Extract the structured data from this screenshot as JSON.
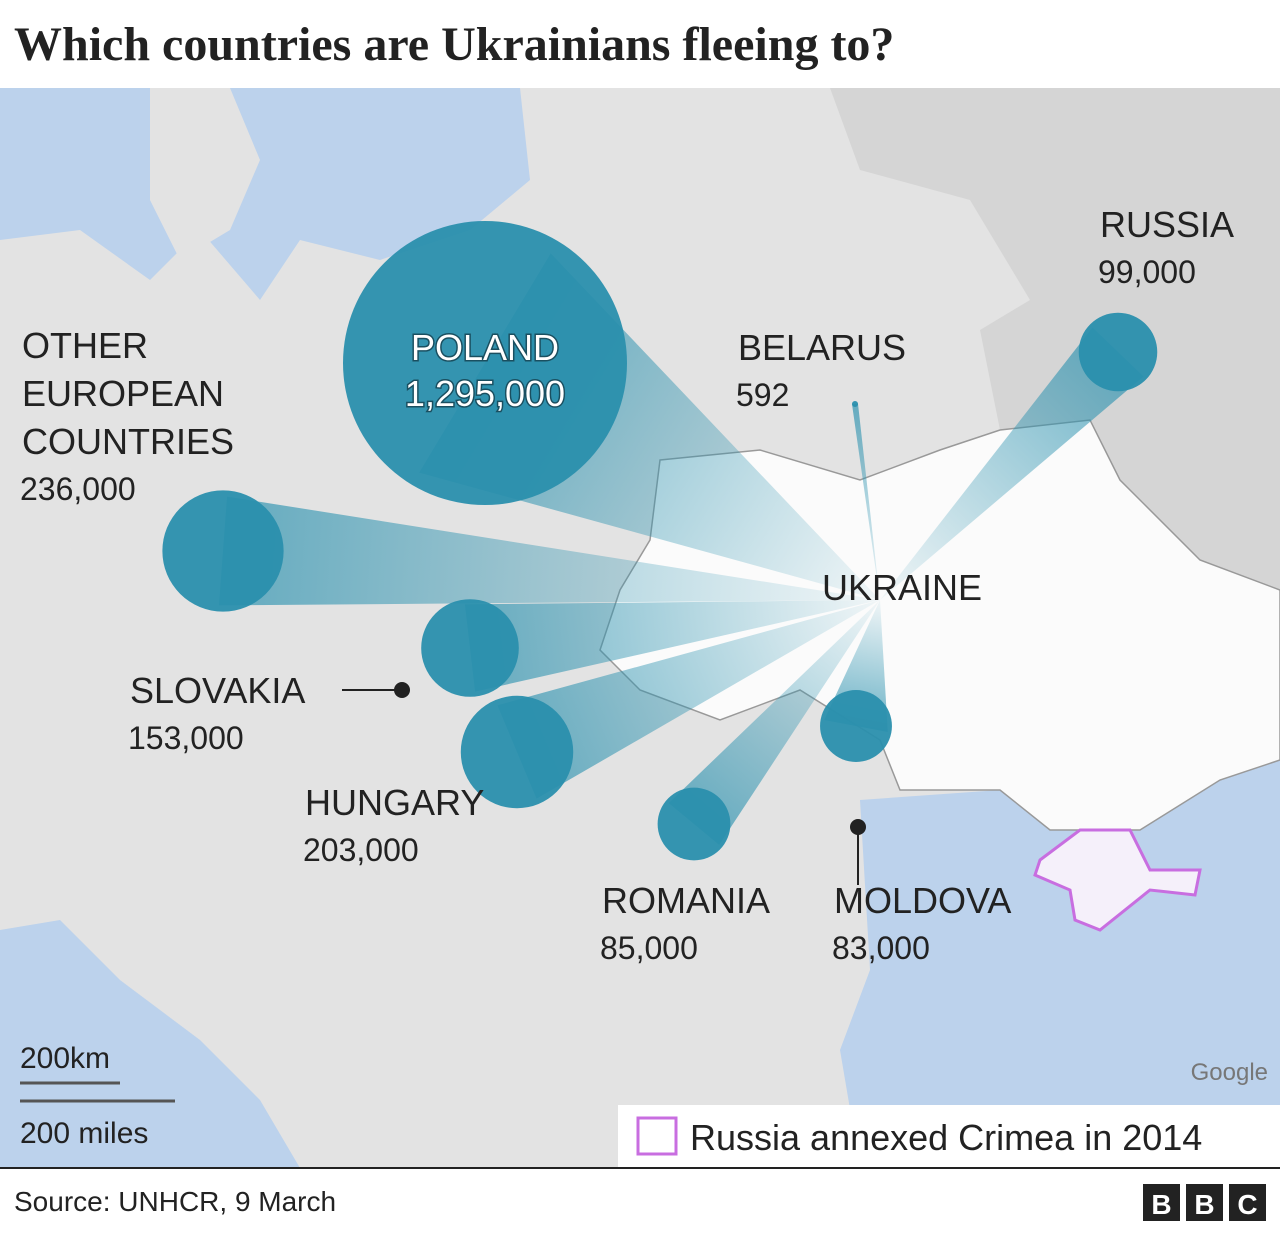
{
  "map": {
    "title": "Which countries are Ukrainians fleeing to?",
    "origin": "UKRAINE",
    "destinations": [
      {
        "name": "POLAND",
        "value": 1295000,
        "label": "1,295,000"
      },
      {
        "name": "OTHER EUROPEAN COUNTRIES",
        "value": 236000,
        "label": "236,000"
      },
      {
        "name": "SLOVAKIA",
        "value": 153000,
        "label": "153,000"
      },
      {
        "name": "HUNGARY",
        "value": 203000,
        "label": "203,000"
      },
      {
        "name": "ROMANIA",
        "value": 85000,
        "label": "85,000"
      },
      {
        "name": "MOLDOVA",
        "value": 83000,
        "label": "83,000"
      },
      {
        "name": "RUSSIA",
        "value": 99000,
        "label": "99,000"
      },
      {
        "name": "BELARUS",
        "value": 592,
        "label": "592"
      }
    ],
    "legend": "Russia annexed Crimea in 2014",
    "scale": [
      "200km",
      "200 miles"
    ],
    "attribution": "Google",
    "source": "Source: UNHCR, 9 March",
    "logo": [
      "B",
      "B",
      "C"
    ]
  }
}
